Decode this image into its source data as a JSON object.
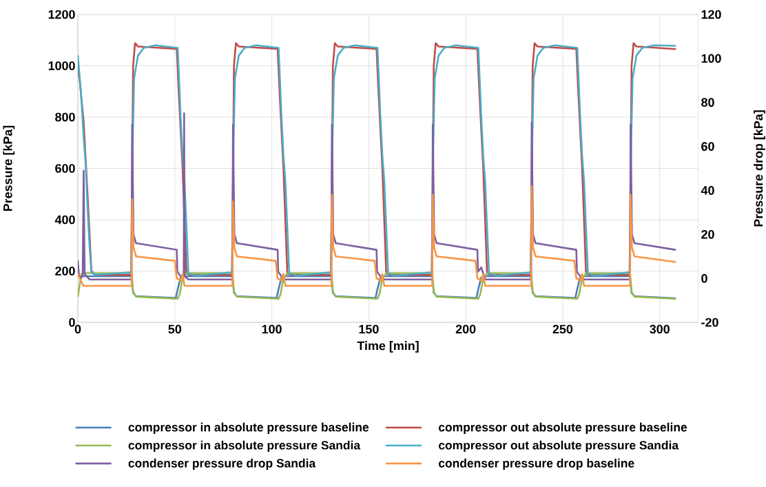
{
  "chart_data": {
    "type": "line",
    "xlabel": "Time [min]",
    "ylabel": "Pressure [kPa]",
    "y2label": "Pressure drop [kPa]",
    "xlim": [
      0,
      320
    ],
    "xticks": [
      0,
      50,
      100,
      150,
      200,
      250,
      300
    ],
    "ylim": [
      0,
      1200
    ],
    "yticks": [
      0,
      200,
      400,
      600,
      800,
      1000,
      1200
    ],
    "y2lim": [
      -20,
      120
    ],
    "y2ticks": [
      -20,
      0,
      20,
      40,
      60,
      80,
      100,
      120
    ],
    "grid": true,
    "legend": "bottom",
    "series": [
      {
        "name": "compressor in absolute pressure baseline",
        "color": "#4a7ebb",
        "x": [
          0,
          5,
          27.7,
          28.5,
          30,
          50.5,
          51.5,
          53,
          55,
          79.7,
          80.5,
          82,
          102.5,
          103.5,
          105,
          107,
          130.7,
          131.5,
          133,
          153.5,
          154.5,
          156,
          158,
          182.7,
          183.5,
          185,
          205.5,
          206.5,
          208,
          210,
          233.7,
          234.5,
          236,
          256.5,
          257.5,
          259,
          261,
          284.7,
          285.5,
          287,
          308
        ],
        "values": [
          180,
          180,
          180,
          115,
          102,
          95,
          130,
          175,
          180,
          180,
          115,
          102,
          95,
          130,
          175,
          180,
          180,
          115,
          102,
          95,
          130,
          175,
          180,
          180,
          115,
          102,
          95,
          130,
          175,
          180,
          180,
          115,
          102,
          95,
          130,
          175,
          180,
          180,
          115,
          102,
          94
        ]
      },
      {
        "name": "compressor out absolute pressure baseline",
        "color": "#be4b48",
        "x": [
          0,
          1,
          3,
          5,
          7,
          9,
          27.5,
          28.5,
          29.5,
          31,
          38,
          51,
          52,
          54,
          56,
          58,
          79.5,
          80.5,
          81.5,
          83,
          90,
          103,
          104,
          106,
          108,
          110,
          130.5,
          131.5,
          132.5,
          134,
          141,
          154,
          155,
          157,
          159,
          161,
          182.5,
          183.5,
          184.5,
          186,
          193,
          206,
          207,
          209,
          211,
          213,
          233.5,
          234.5,
          235.5,
          237,
          244,
          257,
          258,
          260,
          262,
          264,
          284.5,
          285.5,
          286.5,
          288,
          295,
          308
        ],
        "values": [
          990,
          940,
          780,
          500,
          200,
          185,
          185,
          1000,
          1088,
          1075,
          1072,
          1066,
          900,
          600,
          190,
          185,
          185,
          1000,
          1088,
          1075,
          1072,
          1066,
          900,
          600,
          190,
          185,
          185,
          1000,
          1088,
          1075,
          1072,
          1066,
          900,
          600,
          190,
          185,
          185,
          1000,
          1088,
          1075,
          1072,
          1066,
          900,
          600,
          190,
          185,
          185,
          1000,
          1088,
          1075,
          1072,
          1066,
          900,
          600,
          190,
          185,
          185,
          1000,
          1088,
          1075,
          1072,
          1065
        ]
      },
      {
        "name": "compressor in absolute pressure Sandia",
        "color": "#98b954",
        "x": [
          0,
          1,
          2,
          4,
          27.7,
          28.5,
          30,
          51.5,
          52.5,
          54,
          56,
          79.7,
          80.5,
          82,
          103.5,
          104.5,
          106,
          108,
          130.7,
          131.5,
          133,
          154.5,
          155.5,
          157,
          159,
          182.7,
          183.5,
          185,
          206.5,
          207.5,
          209,
          211,
          233.7,
          234.5,
          236,
          257.5,
          258.5,
          260,
          262,
          284.7,
          285.5,
          287,
          308
        ],
        "values": [
          100,
          150,
          190,
          192,
          192,
          120,
          100,
          92,
          110,
          170,
          192,
          192,
          120,
          100,
          92,
          110,
          170,
          192,
          192,
          120,
          100,
          92,
          110,
          170,
          192,
          192,
          120,
          100,
          92,
          110,
          170,
          192,
          192,
          120,
          100,
          92,
          110,
          170,
          192,
          192,
          120,
          100,
          92
        ]
      },
      {
        "name": "compressor out absolute pressure Sandia",
        "color": "#4bacc6",
        "x": [
          0,
          1,
          2,
          3,
          4,
          5,
          6,
          7,
          9,
          27.5,
          28.3,
          29,
          31,
          34,
          40,
          51.5,
          53,
          54,
          55,
          57,
          61,
          79.5,
          80.3,
          81,
          83,
          86,
          92,
          103.5,
          105,
          106,
          107,
          109,
          113,
          130.5,
          131.3,
          132,
          134,
          137,
          143,
          154.5,
          156,
          157,
          158,
          160,
          164,
          182.5,
          183.3,
          184,
          186,
          189,
          195,
          206.5,
          208,
          209,
          210,
          212,
          216,
          233.5,
          234.3,
          235,
          237,
          240,
          246,
          257.5,
          259,
          260,
          261,
          263,
          267,
          284.5,
          285.3,
          286,
          288,
          291,
          297,
          308
        ],
        "values": [
          1040,
          950,
          850,
          720,
          620,
          450,
          300,
          195,
          185,
          195,
          700,
          950,
          1040,
          1070,
          1080,
          1070,
          800,
          650,
          550,
          190,
          182,
          195,
          700,
          950,
          1040,
          1070,
          1080,
          1070,
          800,
          650,
          550,
          190,
          182,
          195,
          700,
          950,
          1040,
          1070,
          1080,
          1070,
          800,
          650,
          550,
          190,
          182,
          195,
          700,
          950,
          1040,
          1070,
          1080,
          1070,
          800,
          650,
          550,
          190,
          182,
          195,
          700,
          950,
          1040,
          1070,
          1080,
          1070,
          800,
          650,
          550,
          190,
          182,
          195,
          700,
          950,
          1040,
          1070,
          1080,
          1078
        ]
      },
      {
        "name": "condenser pressure drop Sandia",
        "color": "#7d60a0",
        "axis": "y2",
        "x": [
          0,
          0.5,
          1.5,
          2.5,
          3,
          3.5,
          6,
          27.7,
          28,
          28.7,
          30,
          51,
          51.3,
          53,
          54.6,
          54.8,
          55.1,
          57,
          79.7,
          80,
          80.7,
          82,
          103,
          103.3,
          105,
          107,
          130.7,
          131,
          131.7,
          133,
          154,
          154.3,
          156,
          158,
          182.7,
          183,
          183.7,
          185,
          206,
          206.3,
          208,
          210,
          233.7,
          234,
          234.7,
          236,
          257,
          257.3,
          259,
          261,
          284.7,
          285,
          285.7,
          287,
          308
        ],
        "values": [
          8,
          2,
          0,
          1,
          49,
          2,
          -0.5,
          -0.5,
          70,
          20,
          16,
          13,
          3,
          1,
          1,
          75,
          1,
          -0.5,
          -0.5,
          70,
          20,
          16,
          13,
          3,
          1,
          -0.5,
          -0.5,
          70,
          20,
          16,
          13,
          3,
          1,
          -0.5,
          -0.5,
          70,
          20,
          16,
          13,
          3,
          5,
          -0.5,
          -0.5,
          71,
          20,
          16,
          13,
          3,
          1,
          -0.5,
          -0.5,
          70,
          20,
          16,
          13
        ]
      },
      {
        "name": "condenser pressure drop baseline",
        "color": "#f79646",
        "axis": "y2",
        "x": [
          0,
          1,
          2,
          3,
          5,
          27.7,
          28,
          28.7,
          30,
          50,
          51,
          53,
          54,
          55,
          79.7,
          80,
          80.7,
          82,
          102,
          103,
          105,
          106,
          107,
          130.7,
          131,
          131.7,
          133,
          153,
          154,
          156,
          157,
          158,
          182.7,
          183,
          183.7,
          185,
          205,
          206,
          208,
          209,
          210,
          233.7,
          234,
          234.7,
          236,
          256,
          257,
          259,
          260,
          261,
          284.7,
          285,
          285.7,
          287,
          308
        ],
        "values": [
          2,
          0,
          -2,
          -3.4,
          -3.4,
          -3.4,
          36,
          14,
          10,
          8,
          0,
          -1,
          2,
          -3.4,
          -3.4,
          35,
          14,
          10,
          8,
          0,
          -1,
          2,
          -3.4,
          -3.4,
          38,
          14,
          10,
          8,
          0,
          -1,
          2,
          -3.4,
          -3.4,
          38,
          14,
          10,
          8,
          0,
          -1,
          2,
          -3.4,
          -3.4,
          42,
          14,
          10,
          8,
          0,
          -1,
          2,
          -3.4,
          -3.4,
          38,
          14,
          10,
          7.5
        ]
      }
    ]
  }
}
